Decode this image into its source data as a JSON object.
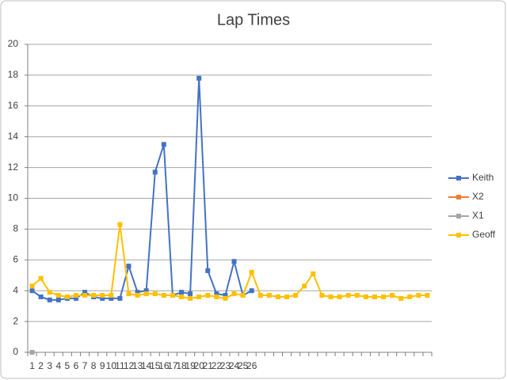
{
  "chart_data": {
    "type": "line",
    "title": "Lap Times",
    "categories": [
      "1",
      "2",
      "3",
      "4",
      "5",
      "6",
      "7",
      "8",
      "9",
      "10",
      "11",
      "12",
      "13",
      "14",
      "15",
      "16",
      "17",
      "18",
      "19",
      "20",
      "21",
      "22",
      "23",
      "24",
      "25",
      "26",
      null,
      null,
      null,
      null,
      null,
      null,
      null,
      null,
      null,
      null,
      null,
      null,
      null,
      null,
      null,
      null,
      null,
      null,
      null,
      null
    ],
    "series": [
      {
        "name": "Keith",
        "color": "#4472c4",
        "values": [
          4.0,
          3.6,
          3.4,
          3.4,
          3.5,
          3.5,
          3.9,
          3.6,
          3.5,
          3.5,
          3.5,
          5.6,
          3.9,
          4.0,
          11.7,
          13.5,
          3.7,
          3.9,
          3.8,
          17.8,
          5.3,
          3.8,
          3.7,
          5.9,
          3.7,
          4.0,
          null,
          null,
          null,
          null,
          null,
          null,
          null,
          null,
          null,
          null,
          null,
          null,
          null,
          null,
          null,
          null,
          null,
          null,
          null,
          null
        ]
      },
      {
        "name": "X2",
        "color": "#ed7d31",
        "values": [
          0,
          null,
          null,
          null,
          null,
          null,
          null,
          null,
          null,
          null,
          null,
          null,
          null,
          null,
          null,
          null,
          null,
          null,
          null,
          null,
          null,
          null,
          null,
          null,
          null,
          null,
          null,
          null,
          null,
          null,
          null,
          null,
          null,
          null,
          null,
          null,
          null,
          null,
          null,
          null,
          null,
          null,
          null,
          null,
          null,
          null
        ]
      },
      {
        "name": "X1",
        "color": "#a5a5a5",
        "values": [
          0,
          null,
          null,
          null,
          null,
          null,
          null,
          null,
          null,
          null,
          null,
          null,
          null,
          null,
          null,
          null,
          null,
          null,
          null,
          null,
          null,
          null,
          null,
          null,
          null,
          null,
          null,
          null,
          null,
          null,
          null,
          null,
          null,
          null,
          null,
          null,
          null,
          null,
          null,
          null,
          null,
          null,
          null,
          null,
          null,
          null
        ]
      },
      {
        "name": "Geoff",
        "color": "#ffc000",
        "values": [
          4.3,
          4.8,
          3.9,
          3.7,
          3.6,
          3.7,
          3.7,
          3.7,
          3.7,
          3.7,
          8.3,
          3.8,
          3.7,
          3.8,
          3.8,
          3.7,
          3.7,
          3.6,
          3.5,
          3.6,
          3.7,
          3.6,
          3.5,
          3.8,
          3.7,
          5.2,
          3.7,
          3.7,
          3.6,
          3.6,
          3.7,
          4.3,
          5.1,
          3.7,
          3.6,
          3.6,
          3.7,
          3.7,
          3.6,
          3.6,
          3.6,
          3.7,
          3.5,
          3.6,
          3.7,
          3.7
        ]
      }
    ],
    "ylim": [
      0,
      20
    ],
    "yticks": [
      0,
      2,
      4,
      6,
      8,
      10,
      12,
      14,
      16,
      18,
      20
    ],
    "grid": true,
    "legend": "right"
  }
}
